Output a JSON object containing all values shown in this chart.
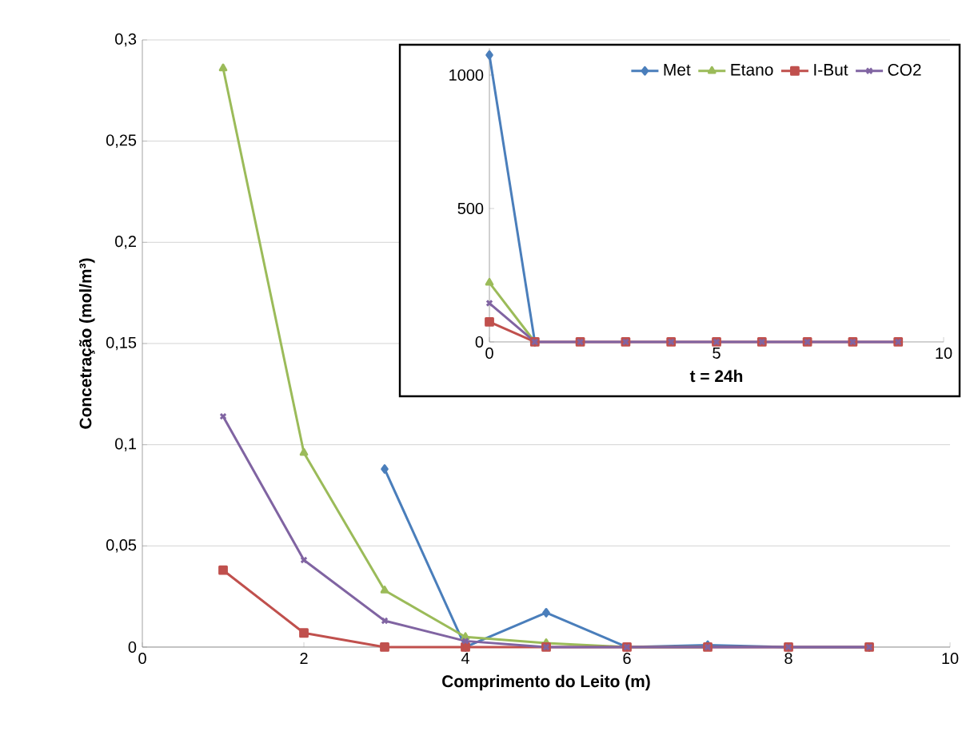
{
  "chart_data": [
    {
      "type": "line",
      "xlabel": "Comprimento do Leito (m)",
      "ylabel": "Concetração (mol/m³)",
      "x": [
        1,
        2,
        3,
        4,
        5,
        6,
        7,
        8,
        9
      ],
      "xlim": [
        0,
        10
      ],
      "ylim": [
        0,
        0.3
      ],
      "xticks": [
        0,
        2,
        4,
        6,
        8,
        10
      ],
      "yticks": [
        {
          "value": 0,
          "label": "0"
        },
        {
          "value": 0.05,
          "label": "0,05"
        },
        {
          "value": 0.1,
          "label": "0,1"
        },
        {
          "value": 0.15,
          "label": "0,15"
        },
        {
          "value": 0.2,
          "label": "0,2"
        },
        {
          "value": 0.25,
          "label": "0,25"
        },
        {
          "value": 0.3,
          "label": "0,3"
        }
      ],
      "grid": "y",
      "series": [
        {
          "color": "#4a7ebb",
          "marker": "diamond",
          "values": [
            null,
            null,
            0.088,
            0,
            0.017,
            0,
            0.001,
            0,
            0
          ]
        },
        {
          "color": "#9bbb59",
          "marker": "triangle",
          "values": [
            0.286,
            0.096,
            0.028,
            0.005,
            0.002,
            0,
            0,
            null,
            null
          ]
        },
        {
          "color": "#c0504d",
          "marker": "square",
          "values": [
            0.038,
            0.007,
            0,
            0,
            0,
            0,
            0,
            0,
            0
          ]
        },
        {
          "color": "#8064a2",
          "marker": "cross",
          "values": [
            0.114,
            0.043,
            0.013,
            0.003,
            0,
            0,
            0,
            0,
            0
          ]
        }
      ]
    },
    {
      "type": "line",
      "xlabel": "t = 24h",
      "x": [
        0,
        1,
        2,
        3,
        4,
        5,
        6,
        7,
        8,
        9
      ],
      "xlim": [
        0,
        10
      ],
      "ylim": [
        0,
        1100
      ],
      "xticks": [
        0,
        5,
        10
      ],
      "yticks": [
        0,
        500,
        1000
      ],
      "legend": "top right",
      "series": [
        {
          "name": "Met",
          "color": "#4a7ebb",
          "marker": "diamond",
          "values": [
            1075,
            0,
            null,
            null,
            null,
            null,
            null,
            null,
            null,
            null
          ]
        },
        {
          "name": "Etano",
          "color": "#9bbb59",
          "marker": "triangle",
          "values": [
            222,
            0,
            null,
            null,
            null,
            null,
            null,
            null,
            null,
            null
          ]
        },
        {
          "name": "I-But",
          "color": "#c0504d",
          "marker": "square",
          "values": [
            75,
            0,
            0,
            0,
            0,
            0,
            0,
            0,
            0,
            0
          ]
        },
        {
          "name": "CO2",
          "color": "#8064a2",
          "marker": "cross",
          "values": [
            145,
            0,
            0,
            0,
            0,
            0,
            0,
            0,
            0,
            0
          ]
        }
      ]
    }
  ]
}
